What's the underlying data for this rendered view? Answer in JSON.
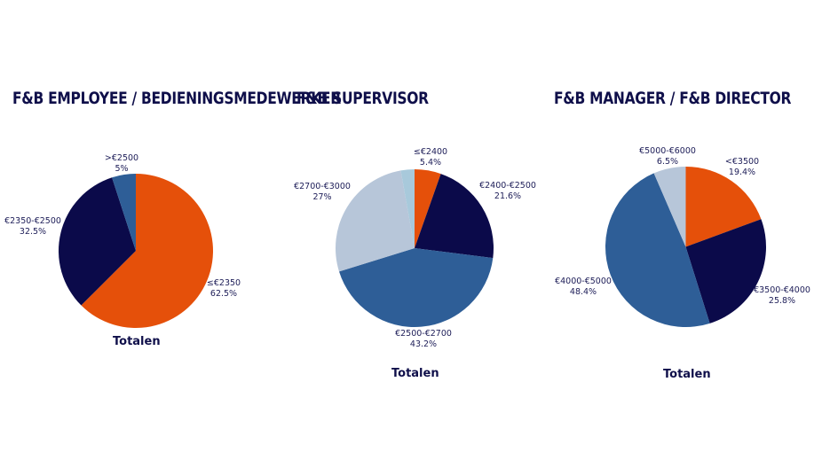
{
  "colors": {
    "orange": "#e5500a",
    "navy": "#0b0a4a",
    "blue": "#2e5e97",
    "lightblue": "#b7c6d9",
    "paleblue": "#a8c9db",
    "text": "#0f0f4a"
  },
  "chart_data": [
    {
      "type": "pie",
      "title": "F&B EMPLOYEE / BEDIENINGSMEDEWERKER",
      "subtitle": "Totalen",
      "slices": [
        {
          "label": "≤€2350",
          "value": 62.5,
          "value_label": "62.5%",
          "color": "#e5500a"
        },
        {
          "label": "€2350-€2500",
          "value": 32.5,
          "value_label": "32.5%",
          "color": "#0b0a4a"
        },
        {
          "label": ">€2500",
          "value": 5,
          "value_label": "5%",
          "color": "#2e5e97"
        }
      ]
    },
    {
      "type": "pie",
      "title": "F&B SUPERVISOR",
      "subtitle": "Totalen",
      "slices": [
        {
          "label": "≤€2400",
          "value": 5.4,
          "value_label": "5.4%",
          "color": "#e5500a"
        },
        {
          "label": "€2400-€2500",
          "value": 21.6,
          "value_label": "21.6%",
          "color": "#0b0a4a"
        },
        {
          "label": "€2500-€2700",
          "value": 43.2,
          "value_label": "43.2%",
          "color": "#2e5e97"
        },
        {
          "label": "€2700-€3000",
          "value": 27,
          "value_label": "27%",
          "color": "#b7c6d9"
        },
        {
          "label": "",
          "value": 2.8,
          "value_label": "",
          "color": "#a8c9db"
        }
      ]
    },
    {
      "type": "pie",
      "title": "F&B MANAGER / F&B DIRECTOR",
      "subtitle": "Totalen",
      "slices": [
        {
          "label": "<€3500",
          "value": 19.4,
          "value_label": "19.4%",
          "color": "#e5500a"
        },
        {
          "label": "€3500-€4000",
          "value": 25.8,
          "value_label": "25.8%",
          "color": "#0b0a4a"
        },
        {
          "label": "€4000-€5000",
          "value": 48.4,
          "value_label": "48.4%",
          "color": "#2e5e97"
        },
        {
          "label": "€5000-€6000",
          "value": 6.5,
          "value_label": "6.5%",
          "color": "#b7c6d9"
        }
      ]
    }
  ]
}
